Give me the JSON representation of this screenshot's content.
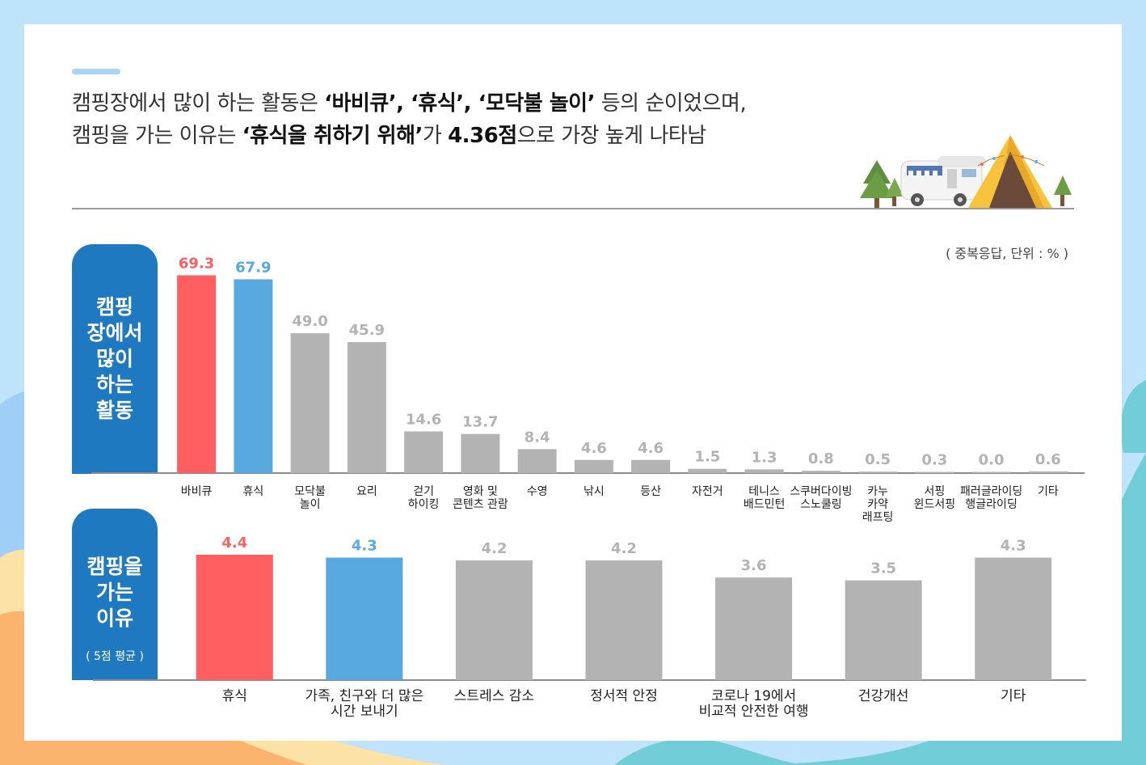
{
  "headline": {
    "line1_a": "캠핑장에서 많이 하는 활동은 ",
    "line1_b": "‘바비큐’, ‘휴식’, ‘모닥불 놀이’",
    "line1_c": " 등의 순이었으며,",
    "line2_a": "캠핑을 가는 이유는 ",
    "line2_b": "‘휴식을 취하기 위해’",
    "line2_c": "가 ",
    "line2_d": "4.36점",
    "line2_e": "으로 가장 높게 나타남"
  },
  "unit_note": "( 중복응답, 단위 : % )",
  "panel1": {
    "lines": [
      "캠핑",
      "장에서",
      "많이",
      "하는",
      "활동"
    ]
  },
  "panel2": {
    "lines": [
      "캠핑을",
      "가는",
      "이유"
    ],
    "sub": "( 5점 평균 )"
  },
  "colors": {
    "first": "#ff5f61",
    "second": "#57a9df",
    "other": "#b3b3b3",
    "panel": "#1f79c0"
  },
  "chart_data": [
    {
      "type": "bar",
      "title": "캠핑장에서 많이 하는 활동",
      "unit": "%",
      "categories": [
        [
          "바비큐"
        ],
        [
          "휴식"
        ],
        [
          "모닥불",
          "놀이"
        ],
        [
          "요리"
        ],
        [
          "걷기",
          "하이킹"
        ],
        [
          "영화 및",
          "콘텐츠 관람"
        ],
        [
          "수영"
        ],
        [
          "낚시"
        ],
        [
          "등산"
        ],
        [
          "자전거"
        ],
        [
          "테니스",
          "배드민턴"
        ],
        [
          "스쿠버다이빙",
          "스노쿨링"
        ],
        [
          "카누",
          "카약",
          "래프팅"
        ],
        [
          "서핑",
          "윈드서핑"
        ],
        [
          "패러글라이딩",
          "행글라이딩"
        ],
        [
          "기타"
        ]
      ],
      "values": [
        69.3,
        67.9,
        49.0,
        45.9,
        14.6,
        13.7,
        8.4,
        4.6,
        4.6,
        1.5,
        1.3,
        0.8,
        0.5,
        0.3,
        0.0,
        0.6
      ],
      "value_labels": [
        "69.3",
        "67.9",
        "49.0",
        "45.9",
        "14.6",
        "13.7",
        "8.4",
        "4.6",
        "4.6",
        "1.5",
        "1.3",
        "0.8",
        "0.5",
        "0.3",
        "0.0",
        "0.6"
      ],
      "ylim": [
        0,
        70
      ]
    },
    {
      "type": "bar",
      "title": "캠핑을 가는 이유",
      "unit": "5점 평균",
      "categories": [
        [
          "휴식"
        ],
        [
          "가족, 친구와  더 많은",
          "시간 보내기"
        ],
        [
          "스트레스 감소"
        ],
        [
          "정서적 안정"
        ],
        [
          "코로나 19에서",
          "비교적 안전한 여행"
        ],
        [
          "건강개선"
        ],
        [
          "기타"
        ]
      ],
      "values": [
        4.4,
        4.3,
        4.2,
        4.2,
        3.6,
        3.5,
        4.3
      ],
      "value_labels": [
        "4.4",
        "4.3",
        "4.2",
        "4.2",
        "3.6",
        "3.5",
        "4.3"
      ],
      "ylim": [
        0,
        4.4
      ]
    }
  ]
}
